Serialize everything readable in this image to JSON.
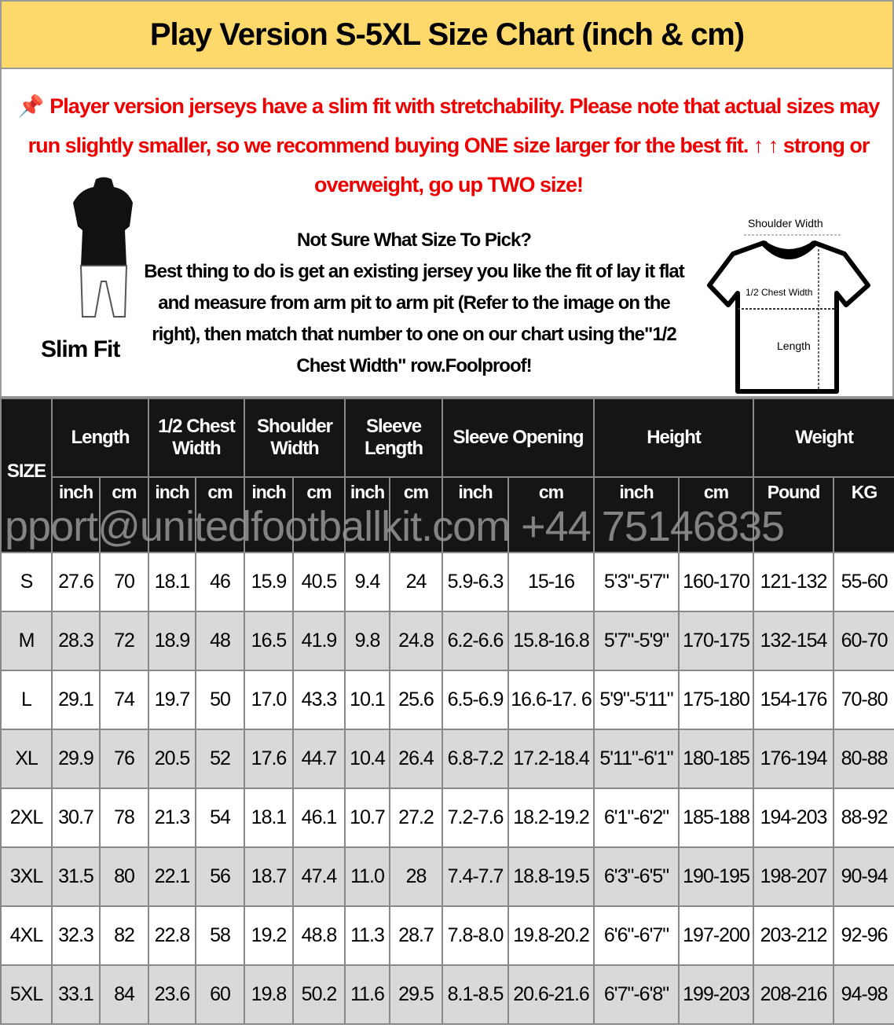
{
  "title": "Play Version S-5XL Size Chart (inch & cm)",
  "notice": "Player version jerseys have a slim fit with stretchability. Please note that actual sizes may run slightly smaller, so we recommend buying ONE size larger for the best fit. ↑ ↑ strong or overweight, go up TWO size!",
  "notice_icon": "pushpin-icon",
  "howto": {
    "heading": "Not Sure What Size To Pick?",
    "body": "Best thing to do is get an existing jersey you like the fit of lay it flat and measure from arm pit to arm pit (Refer to the image on the right), then match that number to one on our chart using the\"1/2 Chest Width\" row.Foolproof!"
  },
  "fit_label": "Slim Fit",
  "diagram": {
    "shoulder": "Shoulder Width",
    "chest": "1/2 Chest Width",
    "length": "Length"
  },
  "watermark": "pport@unitedfootballkit.com  +44 75146835",
  "table": {
    "size_header": "SIZE",
    "groups": [
      "Length",
      "1/2 Chest Width",
      "Shoulder Width",
      "Sleeve Length",
      "Sleeve Opening",
      "Height",
      "Weight"
    ],
    "units": [
      "inch",
      "cm",
      "inch",
      "cm",
      "inch",
      "cm",
      "inch",
      "cm",
      "inch",
      "cm",
      "inch",
      "cm",
      "Pound",
      "KG"
    ],
    "rows": [
      [
        "S",
        "27.6",
        "70",
        "18.1",
        "46",
        "15.9",
        "40.5",
        "9.4",
        "24",
        "5.9-6.3",
        "15-16",
        "5'3\"-5'7\"",
        "160-170",
        "121-132",
        "55-60"
      ],
      [
        "M",
        "28.3",
        "72",
        "18.9",
        "48",
        "16.5",
        "41.9",
        "9.8",
        "24.8",
        "6.2-6.6",
        "15.8-16.8",
        "5'7\"-5'9\"",
        "170-175",
        "132-154",
        "60-70"
      ],
      [
        "L",
        "29.1",
        "74",
        "19.7",
        "50",
        "17.0",
        "43.3",
        "10.1",
        "25.6",
        "6.5-6.9",
        "16.6-17. 6",
        "5'9\"-5'11\"",
        "175-180",
        "154-176",
        "70-80"
      ],
      [
        "XL",
        "29.9",
        "76",
        "20.5",
        "52",
        "17.6",
        "44.7",
        "10.4",
        "26.4",
        "6.8-7.2",
        "17.2-18.4",
        "5'11\"-6'1\"",
        "180-185",
        "176-194",
        "80-88"
      ],
      [
        "2XL",
        "30.7",
        "78",
        "21.3",
        "54",
        "18.1",
        "46.1",
        "10.7",
        "27.2",
        "7.2-7.6",
        "18.2-19.2",
        "6'1\"-6'2\"",
        "185-188",
        "194-203",
        "88-92"
      ],
      [
        "3XL",
        "31.5",
        "80",
        "22.1",
        "56",
        "18.7",
        "47.4",
        "11.0",
        "28",
        "7.4-7.7",
        "18.8-19.5",
        "6'3\"-6'5\"",
        "190-195",
        "198-207",
        "90-94"
      ],
      [
        "4XL",
        "32.3",
        "82",
        "22.8",
        "58",
        "19.2",
        "48.8",
        "11.3",
        "28.7",
        "7.8-8.0",
        "19.8-20.2",
        "6'6\"-6'7\"",
        "197-200",
        "203-212",
        "92-96"
      ],
      [
        "5XL",
        "33.1",
        "84",
        "23.6",
        "60",
        "19.8",
        "50.2",
        "11.6",
        "29.5",
        "8.1-8.5",
        "20.6-21.6",
        "6'7\"-6'8\"",
        "199-203",
        "208-216",
        "94-98"
      ]
    ]
  }
}
